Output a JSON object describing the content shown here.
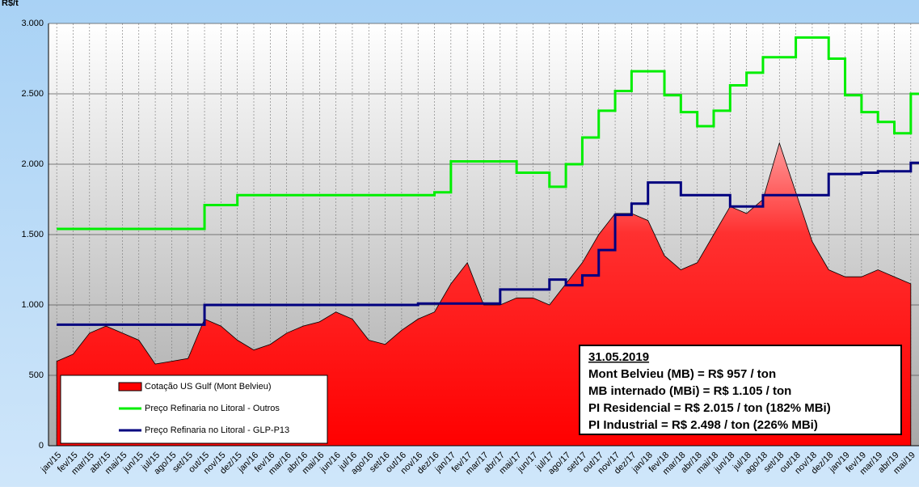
{
  "chart_data": {
    "type": "mixed",
    "y_label": "R$/t",
    "categories": [
      "jan/15",
      "fev/15",
      "mar/15",
      "abr/15",
      "mai/15",
      "jun/15",
      "jul/15",
      "ago/15",
      "set/15",
      "out/15",
      "nov/15",
      "dez/15",
      "jan/16",
      "fev/16",
      "mar/16",
      "abr/16",
      "mai/16",
      "jun/16",
      "jul/16",
      "ago/16",
      "set/16",
      "out/16",
      "nov/16",
      "dez/16",
      "jan/17",
      "fev/17",
      "mar/17",
      "abr/17",
      "mai/17",
      "jun/17",
      "jul/17",
      "ago/17",
      "set/17",
      "out/17",
      "nov/17",
      "dez/17",
      "jan/18",
      "fev/18",
      "mar/18",
      "abr/18",
      "mai/18",
      "jun/18",
      "jul/18",
      "ago/18",
      "set/18",
      "out/18",
      "nov/18",
      "dez/18",
      "jan/19",
      "fev/19",
      "mar/19",
      "abr/19",
      "mai/19"
    ],
    "series": [
      {
        "name": "Cotação US Gulf (Mont Belvieu)",
        "kind": "area",
        "color": "#ff0000",
        "values": [
          600,
          650,
          800,
          850,
          800,
          750,
          580,
          600,
          620,
          900,
          850,
          750,
          680,
          720,
          800,
          850,
          880,
          950,
          900,
          750,
          720,
          820,
          900,
          950,
          1150,
          1300,
          1000,
          1000,
          1050,
          1050,
          1000,
          1150,
          1300,
          1500,
          1650,
          1650,
          1600,
          1350,
          1250,
          1300,
          1500,
          1700,
          1650,
          1750,
          2150,
          1800,
          1450,
          1250,
          1200,
          1200,
          1250,
          1200,
          1150
        ]
      },
      {
        "name": "Preço Refinaria no Litoral - Outros",
        "kind": "step",
        "color": "#00ee00",
        "values": [
          1540,
          1540,
          1540,
          1540,
          1540,
          1540,
          1540,
          1540,
          1540,
          1710,
          1710,
          1780,
          1780,
          1780,
          1780,
          1780,
          1780,
          1780,
          1780,
          1780,
          1780,
          1780,
          1780,
          1800,
          2020,
          2020,
          2020,
          2020,
          1940,
          1940,
          1840,
          2000,
          2190,
          2380,
          2520,
          2660,
          2660,
          2490,
          2370,
          2270,
          2380,
          2560,
          2650,
          2760,
          2760,
          2900,
          2900,
          2750,
          2490,
          2370,
          2300,
          2220,
          2500
        ]
      },
      {
        "name": "Preço Refinaria no Litoral - GLP-P13",
        "kind": "step",
        "color": "#00007f",
        "values": [
          860,
          860,
          860,
          860,
          860,
          860,
          860,
          860,
          860,
          1000,
          1000,
          1000,
          1000,
          1000,
          1000,
          1000,
          1000,
          1000,
          1000,
          1000,
          1000,
          1000,
          1010,
          1010,
          1010,
          1010,
          1010,
          1110,
          1110,
          1110,
          1180,
          1140,
          1210,
          1390,
          1640,
          1720,
          1870,
          1870,
          1780,
          1780,
          1780,
          1700,
          1700,
          1780,
          1780,
          1780,
          1780,
          1930,
          1930,
          1940,
          1950,
          1950,
          2010
        ]
      }
    ],
    "ylim": [
      0,
      3000
    ],
    "yticks": [
      0,
      500,
      {
        "value": 1000,
        "label": "1.000"
      },
      {
        "value": 1500,
        "label": "1.500"
      },
      {
        "value": 2000,
        "label": "2.000"
      },
      {
        "value": 2500,
        "label": "2.500"
      },
      {
        "value": 3000,
        "label": "3.000"
      }
    ],
    "grid": true,
    "legend": "lower left",
    "annotations": [
      "31.05.2019",
      "Mont Belvieu (MB) = R$ 957 / ton",
      "MB internado (MBi) = R$ 1.105 / ton",
      "PI Residencial = R$ 2.015 / ton (182% MBi)",
      "PI Industrial = R$ 2.498 / ton (226% MBi)"
    ]
  }
}
